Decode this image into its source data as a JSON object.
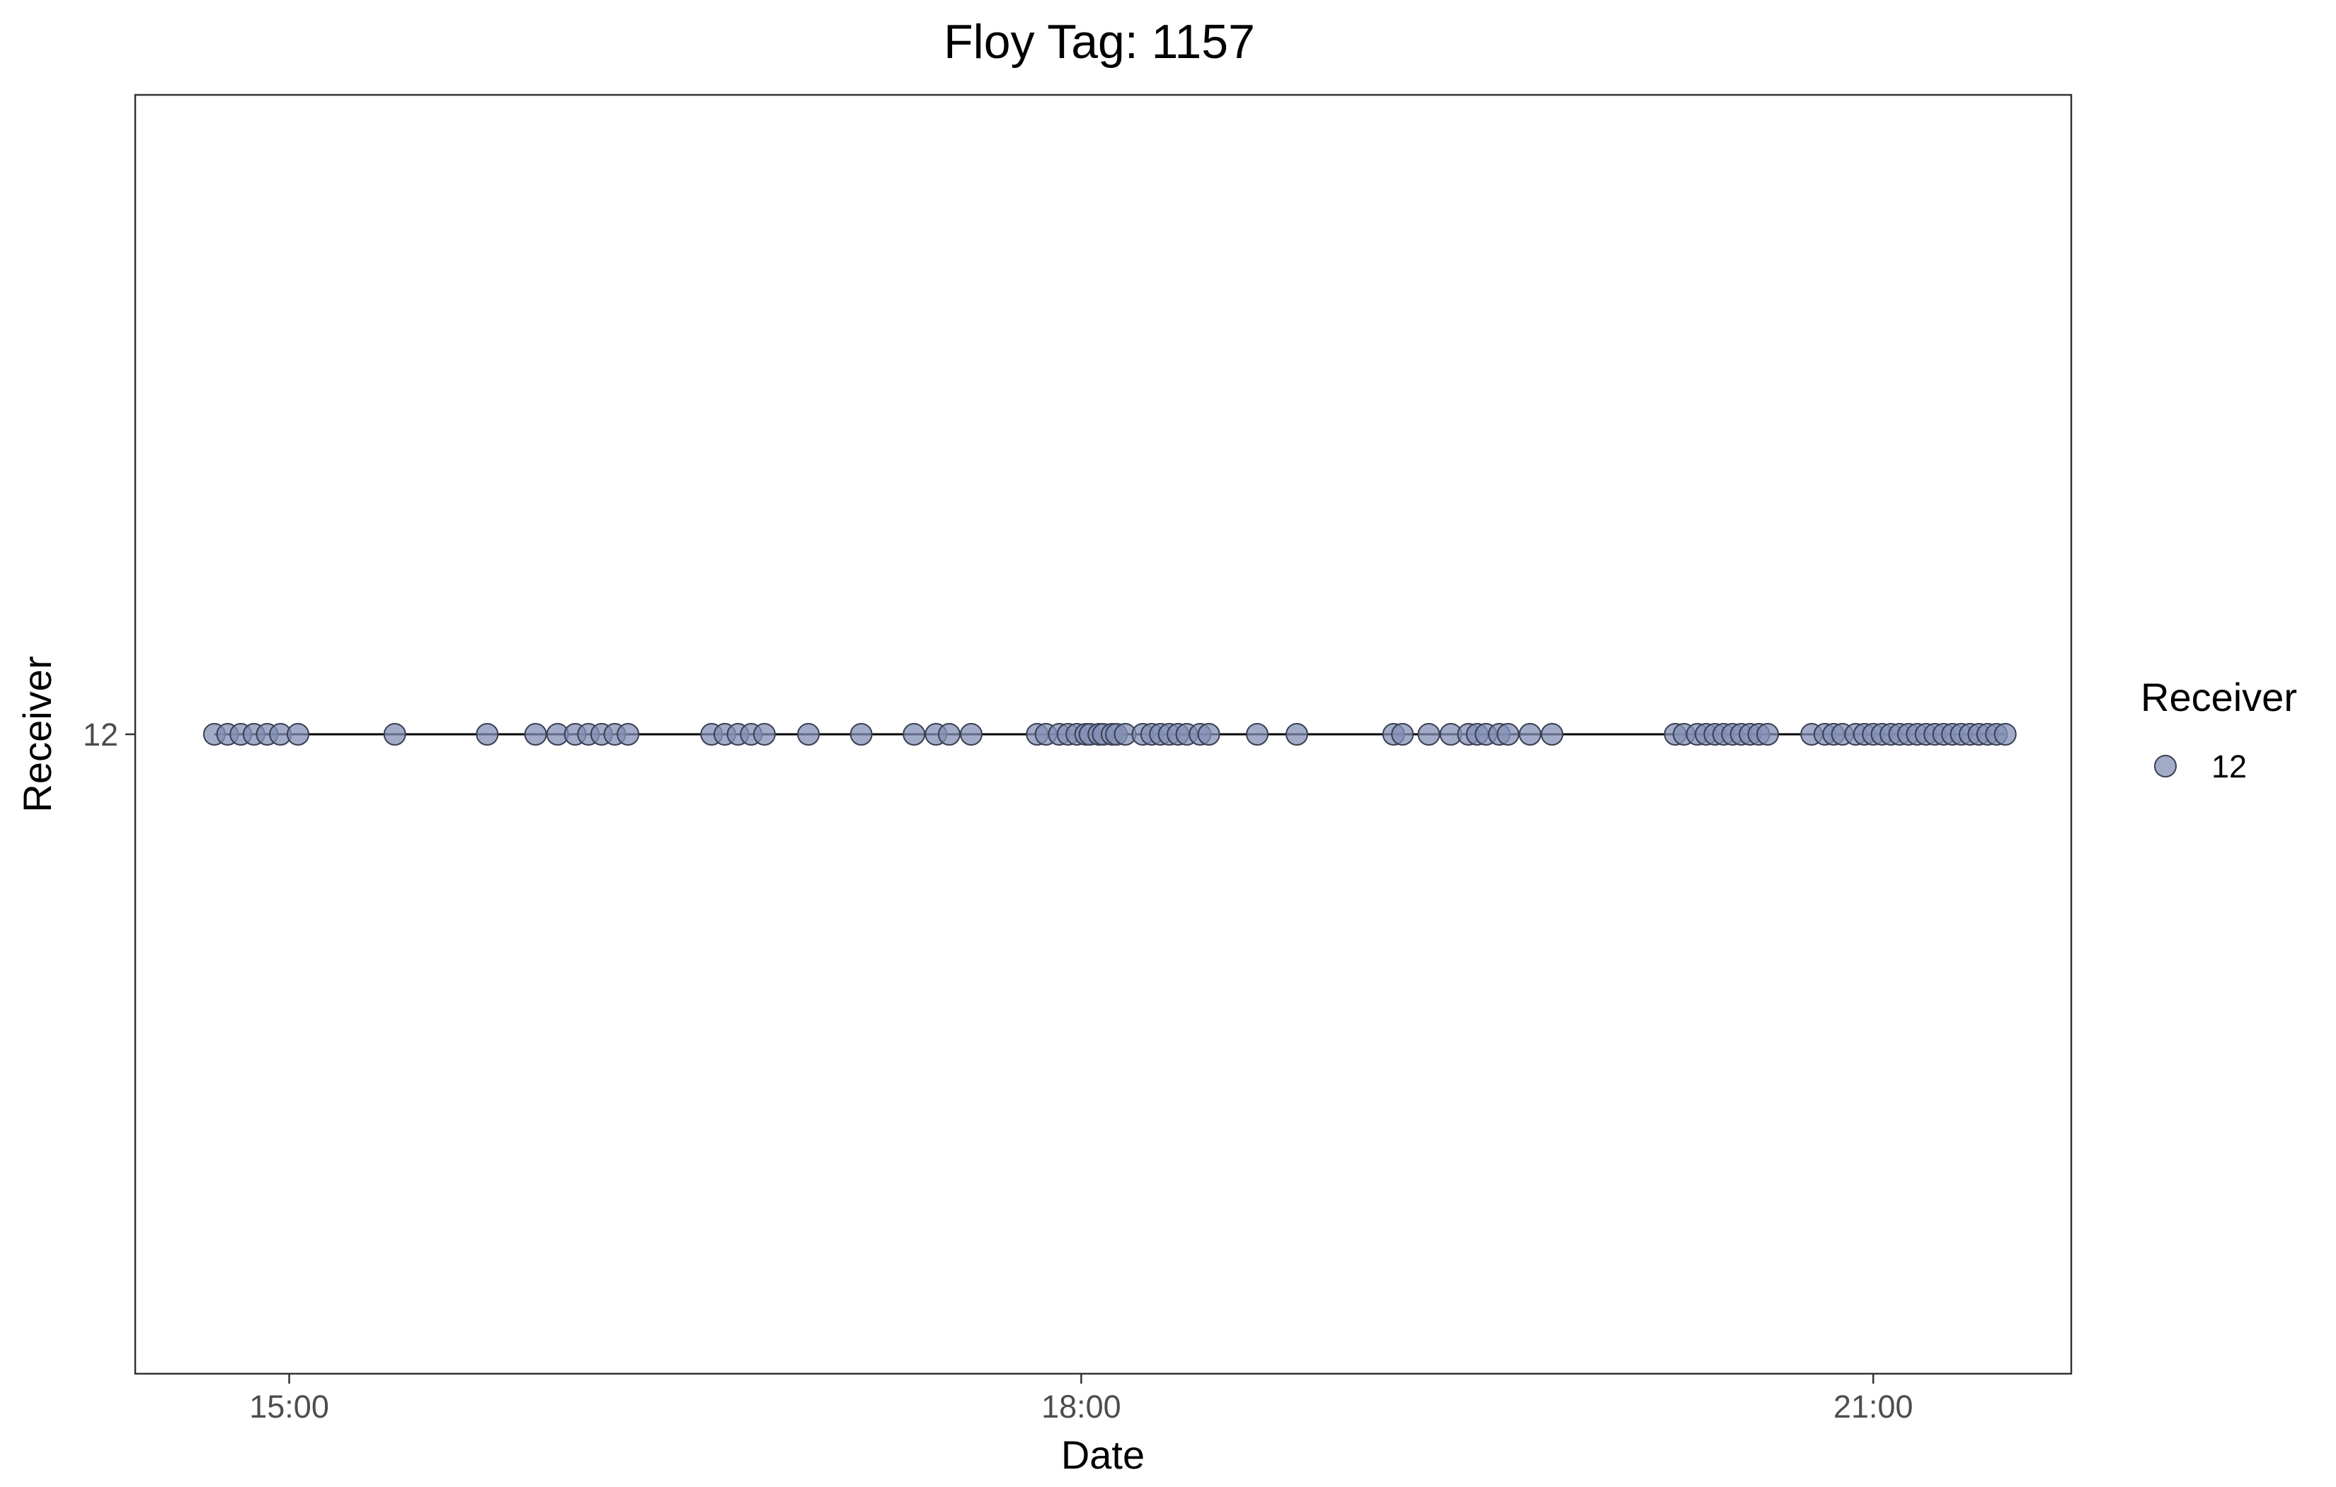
{
  "chart_data": {
    "type": "scatter",
    "title": "Floy Tag: 1157",
    "xlabel": "Date",
    "ylabel": "Receiver",
    "x_ticks": [
      "15:00",
      "18:00",
      "21:00"
    ],
    "y_ticks": [
      "12"
    ],
    "xlim": [
      "14:25",
      "21:45"
    ],
    "grid": false,
    "legend": {
      "title": "Receiver",
      "position": "right",
      "entries": [
        {
          "label": "12",
          "color": "#8390b5"
        }
      ]
    },
    "colors": {
      "point_fill": "#8390b5",
      "point_stroke": "#3a3f52",
      "line": "#000000"
    },
    "series": [
      {
        "name": "12",
        "y": "12",
        "x": [
          "14:43",
          "14:46",
          "14:49",
          "14:52",
          "14:55",
          "14:58",
          "15:02",
          "15:24",
          "15:45",
          "15:56",
          "16:01",
          "16:05",
          "16:08",
          "16:11",
          "16:14",
          "16:17",
          "16:36",
          "16:39",
          "16:42",
          "16:45",
          "16:48",
          "16:58",
          "17:10",
          "17:22",
          "17:27",
          "17:30",
          "17:35",
          "17:50",
          "17:52",
          "17:55",
          "17:57",
          "17:59",
          "18:01",
          "18:02",
          "18:04",
          "18:05",
          "18:07",
          "18:08",
          "18:10",
          "18:14",
          "18:16",
          "18:18",
          "18:20",
          "18:22",
          "18:24",
          "18:27",
          "18:29",
          "18:40",
          "18:49",
          "19:11",
          "19:13",
          "19:19",
          "19:24",
          "19:28",
          "19:30",
          "19:32",
          "19:35",
          "19:37",
          "19:42",
          "19:47",
          "20:15",
          "20:17",
          "20:20",
          "20:22",
          "20:24",
          "20:26",
          "20:28",
          "20:30",
          "20:32",
          "20:34",
          "20:36",
          "20:46",
          "20:49",
          "20:51",
          "20:53",
          "20:56",
          "20:58",
          "21:00",
          "21:02",
          "21:04",
          "21:06",
          "21:08",
          "21:10",
          "21:12",
          "21:14",
          "21:16",
          "21:18",
          "21:20",
          "21:22",
          "21:24",
          "21:26",
          "21:28",
          "21:30"
        ]
      }
    ]
  }
}
